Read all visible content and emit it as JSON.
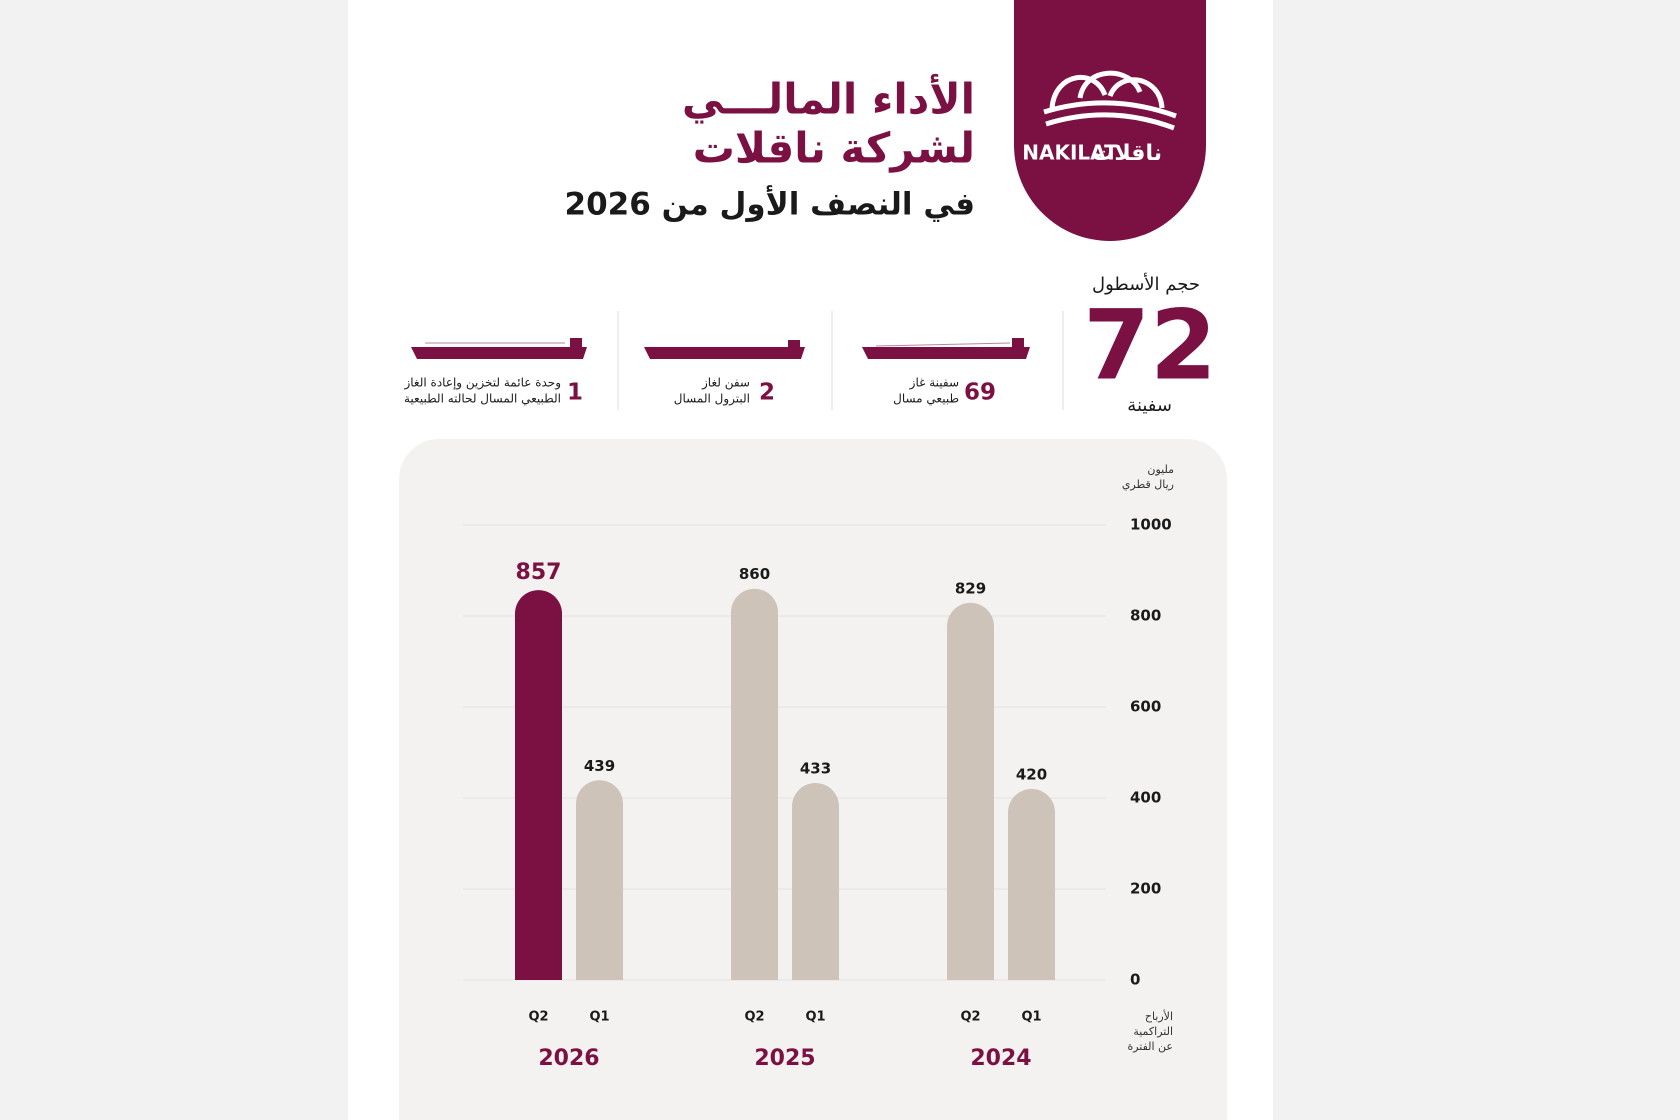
{
  "logo": {
    "latin": "NAKILAT",
    "arabic": "ناقلات"
  },
  "header": {
    "title_lines": [
      "الأداء المالـــي",
      "لشركة ناقلات"
    ],
    "subtitle": "في النصف الأول من 2026"
  },
  "fleet": {
    "label": "حجم الأسطول",
    "total": "72",
    "unit": "سفينة",
    "items": [
      {
        "count": "69",
        "lines": [
          "سفينة غاز",
          "طبيعي مسال"
        ]
      },
      {
        "count": "2",
        "lines": [
          "سفن لغاز",
          "البترول المسال"
        ]
      },
      {
        "count": "1",
        "lines": [
          "وحدة عائمة لتخزين وإعادة الغاز",
          "الطبيعي المسال لحالته الطبيعية"
        ]
      }
    ]
  },
  "chart_data": {
    "type": "bar",
    "y_label_lines": [
      "مليون",
      "ريال قطري"
    ],
    "x_label_lines": [
      "الأرباح",
      "التراكمية",
      "عن الفترة"
    ],
    "categories": [
      "2026",
      "2025",
      "2024"
    ],
    "series": [
      {
        "name": "Q2",
        "color": "#cdc3b9",
        "colors": [
          "#7b1042",
          "#cdc3b9",
          "#cdc3b9"
        ],
        "values": [
          857,
          860,
          829
        ]
      },
      {
        "name": "Q1",
        "color": "#cdc3b9",
        "values": [
          439,
          433,
          420
        ]
      }
    ],
    "ylim": [
      0,
      1000
    ],
    "yticks": [
      0,
      200,
      400,
      600,
      800,
      1000
    ],
    "grid": true
  }
}
